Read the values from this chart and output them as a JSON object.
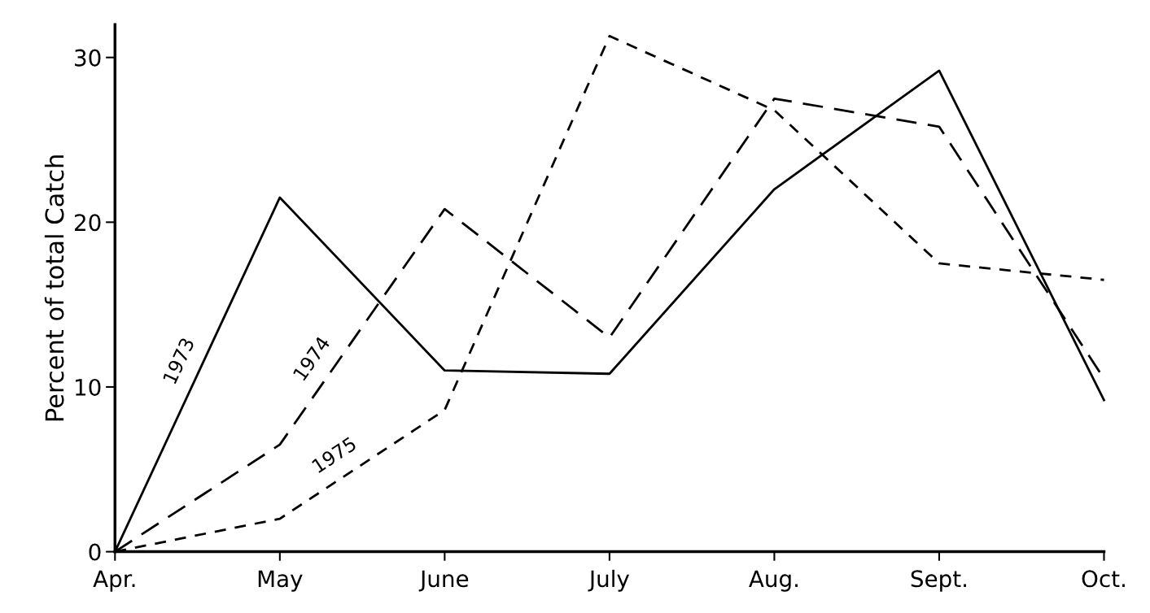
{
  "chart_data": {
    "type": "line",
    "ylabel": "Percent of total Catch",
    "categories": [
      "Apr.",
      "May",
      "June",
      "July",
      "Aug.",
      "Sept.",
      "Oct."
    ],
    "series": [
      {
        "name": "1973",
        "color": "#000000",
        "line_style": "solid",
        "values": [
          0,
          21.5,
          11,
          10.8,
          22,
          29.2,
          9.2
        ]
      },
      {
        "name": "1974",
        "color": "#000000",
        "line_style": "dashed",
        "values": [
          0,
          6.5,
          20.8,
          13,
          27.5,
          25.8,
          10.5
        ]
      },
      {
        "name": "1975",
        "color": "#000000",
        "line_style": "dashed",
        "values": [
          0,
          2,
          8.6,
          31.3,
          26.8,
          17.5,
          16.5
        ]
      }
    ],
    "ylim": [
      0,
      32
    ],
    "yticks": [
      0,
      10,
      20,
      30
    ],
    "grid": false,
    "legend": false,
    "marker": "none"
  }
}
